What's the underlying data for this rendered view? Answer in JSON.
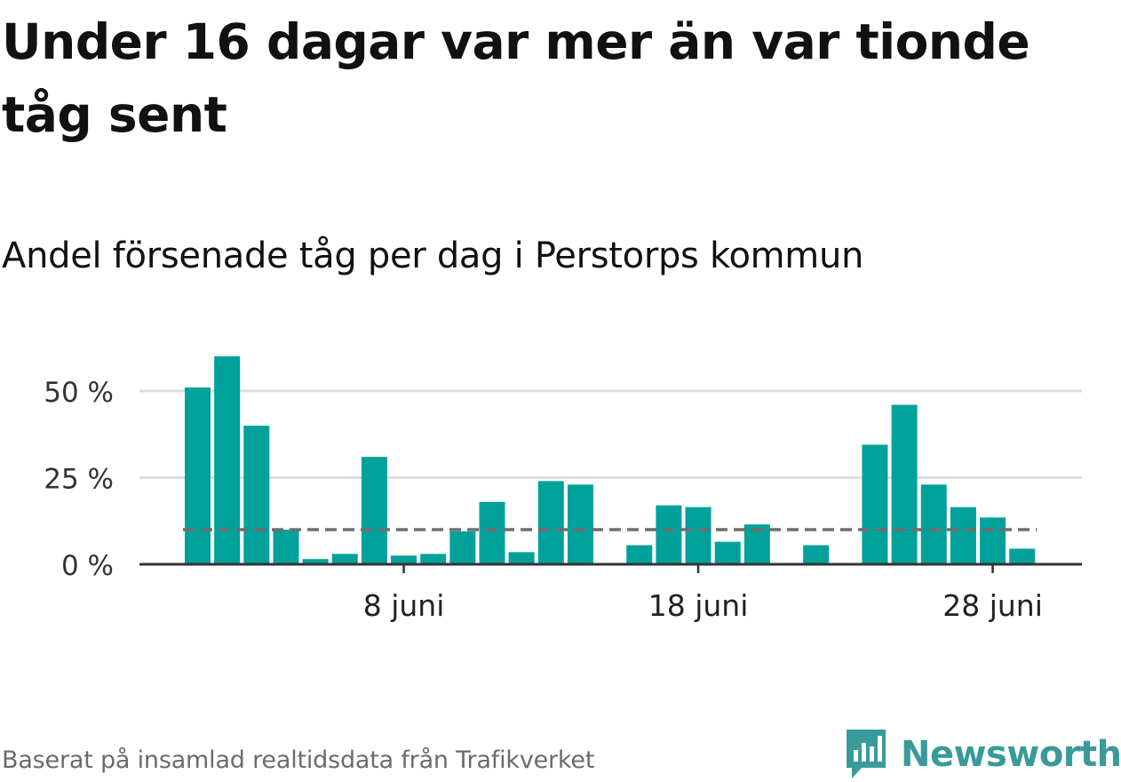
{
  "title": "Under 16 dagar var mer än var tionde tåg sent",
  "subtitle": "Andel försenade tåg per dag i Perstorps kommun",
  "footer": "Baserat på insamlad realtidsdata från Trafikverket",
  "brand": {
    "name": "Newsworthy",
    "color": "#3a9a9a",
    "icon": "bar-chart-logo-icon"
  },
  "colors": {
    "bar": "#00a19a",
    "reference_line": "#6e6e6e",
    "grid": "#dddddd",
    "axis": "#333333"
  },
  "chart_data": {
    "type": "bar",
    "x_start_day": 1,
    "values": [
      51,
      60,
      40,
      10,
      1.5,
      3,
      31,
      2.5,
      3,
      9.5,
      18,
      3.5,
      24,
      23,
      null,
      5.5,
      17,
      16.5,
      6.5,
      11.5,
      null,
      5.5,
      null,
      34.5,
      46,
      23,
      16.5,
      13.5,
      4.5
    ],
    "reference_line": 10,
    "ylim": [
      0,
      60
    ],
    "yticks": [
      {
        "value": 0,
        "label": "0 %"
      },
      {
        "value": 25,
        "label": "25 %"
      },
      {
        "value": 50,
        "label": "50 %"
      }
    ],
    "xticks": [
      {
        "day": 8,
        "label": "8 juni"
      },
      {
        "day": 18,
        "label": "18 juni"
      },
      {
        "day": 28,
        "label": "28 juni"
      }
    ]
  }
}
